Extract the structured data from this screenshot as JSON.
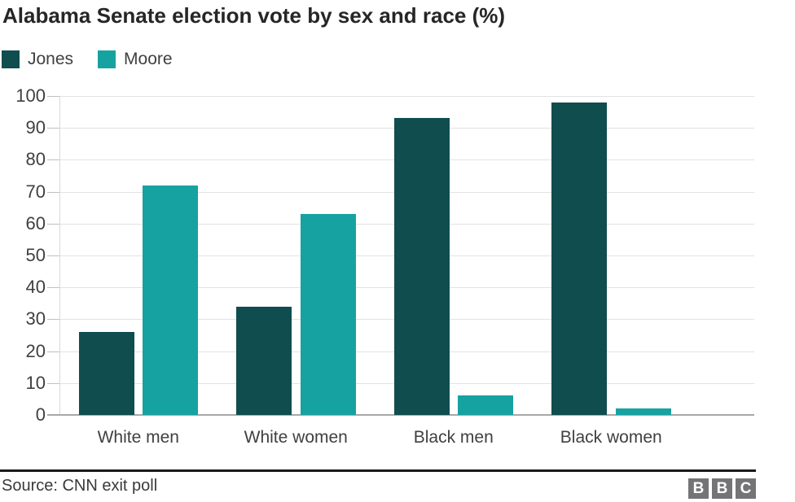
{
  "title": "Alabama Senate election vote by sex and race (%)",
  "legend": [
    {
      "label": "Jones",
      "color": "#0f4d4f"
    },
    {
      "label": "Moore",
      "color": "#17a2a2"
    }
  ],
  "chart_data": {
    "type": "bar",
    "title": "Alabama Senate election vote by sex and race (%)",
    "categories": [
      "White men",
      "White women",
      "Black men",
      "Black women"
    ],
    "series": [
      {
        "name": "Jones",
        "color": "#0f4d4f",
        "values": [
          26,
          34,
          93,
          98
        ]
      },
      {
        "name": "Moore",
        "color": "#17a2a2",
        "values": [
          72,
          63,
          6,
          2
        ]
      }
    ],
    "xlabel": "",
    "ylabel": "",
    "ylim": [
      0,
      100
    ],
    "ytick_step": 10,
    "grid": true,
    "legend_position": "top-left"
  },
  "footer": {
    "source": "Source: CNN exit poll",
    "logo_letters": [
      "B",
      "B",
      "C"
    ],
    "logo_color": "#747477"
  }
}
